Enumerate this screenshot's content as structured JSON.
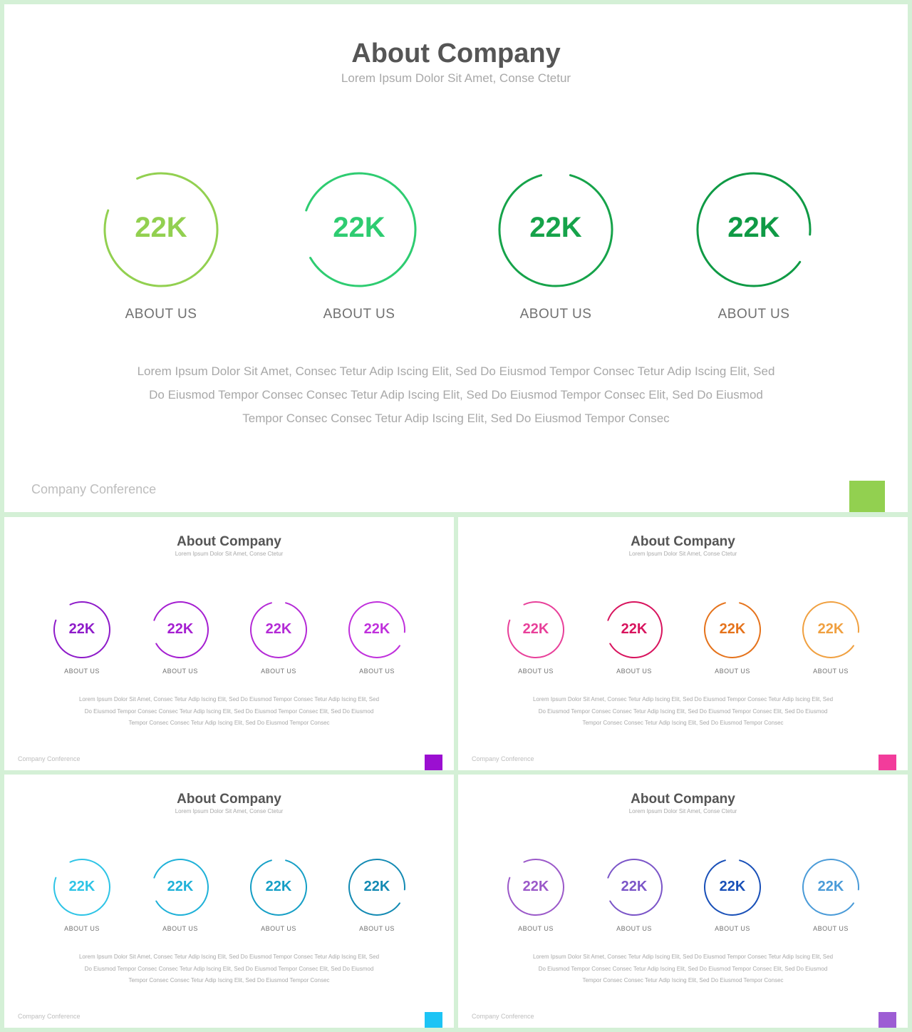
{
  "slides": [
    {
      "title": "About Company",
      "subtitle": "Lorem Ipsum Dolor Sit Amet, Conse Ctetur",
      "rings": [
        {
          "value": "22K",
          "label": "ABOUT US",
          "color": "#92d050"
        },
        {
          "value": "22K",
          "label": "ABOUT US",
          "color": "#2ecc71"
        },
        {
          "value": "22K",
          "label": "ABOUT US",
          "color": "#16a34a"
        },
        {
          "value": "22K",
          "label": "ABOUT US",
          "color": "#0f9a45"
        }
      ],
      "body_lines": [
        "Lorem Ipsum Dolor Sit Amet, Consec Tetur Adip Iscing Elit, Sed Do Eiusmod Tempor Consec Tetur Adip Iscing Elit, Sed",
        "Do Eiusmod Tempor Consec Consec Tetur Adip Iscing Elit, Sed Do Eiusmod Tempor Consec Elit, Sed Do Eiusmod",
        "Tempor Consec Consec Tetur Adip Iscing Elit, Sed Do Eiusmod Tempor Consec"
      ],
      "footer": "Company Conference",
      "accent_color": "#92d050"
    },
    {
      "title": "About Company",
      "subtitle": "Lorem Ipsum Dolor Sit Amet, Conse Ctetur",
      "rings": [
        {
          "value": "22K",
          "label": "ABOUT US",
          "color": "#8e1bc9"
        },
        {
          "value": "22K",
          "label": "ABOUT US",
          "color": "#a51fd1"
        },
        {
          "value": "22K",
          "label": "ABOUT US",
          "color": "#b42ad6"
        },
        {
          "value": "22K",
          "label": "ABOUT US",
          "color": "#c030dc"
        }
      ],
      "body_lines": [
        "Lorem Ipsum Dolor Sit Amet, Consec Tetur Adip Iscing Elit, Sed Do Eiusmod Tempor Consec Tetur Adip Iscing Elit, Sed",
        "Do Eiusmod Tempor Consec Consec Tetur Adip Iscing Elit, Sed Do Eiusmod Tempor Consec Elit, Sed Do Eiusmod",
        "Tempor Consec Consec Tetur Adip Iscing Elit, Sed Do Eiusmod Tempor Consec"
      ],
      "footer": "Company Conference",
      "accent_color": "#9b0fd1"
    },
    {
      "title": "About Company",
      "subtitle": "Lorem Ipsum Dolor Sit Amet, Conse Ctetur",
      "rings": [
        {
          "value": "22K",
          "label": "ABOUT US",
          "color": "#e8409a"
        },
        {
          "value": "22K",
          "label": "ABOUT US",
          "color": "#d8145e"
        },
        {
          "value": "22K",
          "label": "ABOUT US",
          "color": "#e5731c"
        },
        {
          "value": "22K",
          "label": "ABOUT US",
          "color": "#f0a040"
        }
      ],
      "body_lines": [
        "Lorem Ipsum Dolor Sit Amet, Consec Tetur Adip Iscing Elit, Sed Do Eiusmod Tempor Consec Tetur Adip Iscing Elit, Sed",
        "Do Eiusmod Tempor Consec Consec Tetur Adip Iscing Elit, Sed Do Eiusmod Tempor Consec Elit, Sed Do Eiusmod",
        "Tempor Consec Consec Tetur Adip Iscing Elit, Sed Do Eiusmod Tempor Consec"
      ],
      "footer": "Company Conference",
      "accent_color": "#f23c9b"
    },
    {
      "title": "About Company",
      "subtitle": "Lorem Ipsum Dolor Sit Amet, Conse Ctetur",
      "rings": [
        {
          "value": "22K",
          "label": "ABOUT US",
          "color": "#2ec4e6"
        },
        {
          "value": "22K",
          "label": "ABOUT US",
          "color": "#1fb1d8"
        },
        {
          "value": "22K",
          "label": "ABOUT US",
          "color": "#169fc6"
        },
        {
          "value": "22K",
          "label": "ABOUT US",
          "color": "#138ab3"
        }
      ],
      "body_lines": [
        "Lorem Ipsum Dolor Sit Amet, Consec Tetur Adip Iscing Elit, Sed Do Eiusmod Tempor Consec Tetur Adip Iscing Elit, Sed",
        "Do Eiusmod Tempor Consec Consec Tetur Adip Iscing Elit, Sed Do Eiusmod Tempor Consec Elit, Sed Do Eiusmod",
        "Tempor Consec Consec Tetur Adip Iscing Elit, Sed Do Eiusmod Tempor Consec"
      ],
      "footer": "Company Conference",
      "accent_color": "#1cc4f5"
    },
    {
      "title": "About Company",
      "subtitle": "Lorem Ipsum Dolor Sit Amet, Conse Ctetur",
      "rings": [
        {
          "value": "22K",
          "label": "ABOUT US",
          "color": "#9b59c9"
        },
        {
          "value": "22K",
          "label": "ABOUT US",
          "color": "#7b55c8"
        },
        {
          "value": "22K",
          "label": "ABOUT US",
          "color": "#1950b8"
        },
        {
          "value": "22K",
          "label": "ABOUT US",
          "color": "#4a9bd8"
        }
      ],
      "body_lines": [
        "Lorem Ipsum Dolor Sit Amet, Consec Tetur Adip Iscing Elit, Sed Do Eiusmod Tempor Consec Tetur Adip Iscing Elit, Sed",
        "Do Eiusmod Tempor Consec Consec Tetur Adip Iscing Elit, Sed Do Eiusmod Tempor Consec Elit, Sed Do Eiusmod",
        "Tempor Consec Consec Tetur Adip Iscing Elit, Sed Do Eiusmod Tempor Consec"
      ],
      "footer": "Company Conference",
      "accent_color": "#9d5dd4"
    }
  ]
}
